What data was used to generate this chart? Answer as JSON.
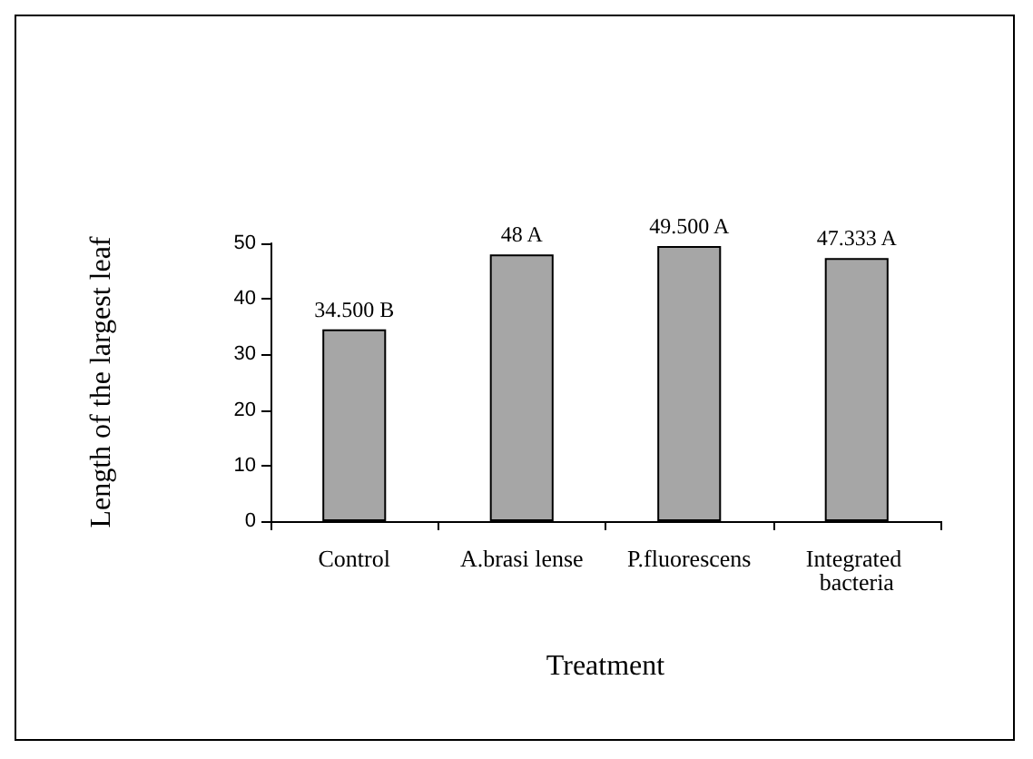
{
  "chart_data": {
    "type": "bar",
    "xlabel": "Treatment",
    "ylabel": "Length of the largest leaf",
    "categories": [
      "Control",
      "A.brasi lense",
      "P.fluorescens",
      "Integrated bacteria"
    ],
    "values": [
      34.5,
      48,
      49.5,
      47.333
    ],
    "value_labels": [
      "34.500 B",
      "48 A",
      "49.500 A",
      "47.333 A"
    ],
    "color": "#a6a6a6",
    "ylim": [
      0,
      50
    ],
    "yticks": [
      0,
      10,
      20,
      30,
      40,
      50
    ],
    "grid": false
  }
}
